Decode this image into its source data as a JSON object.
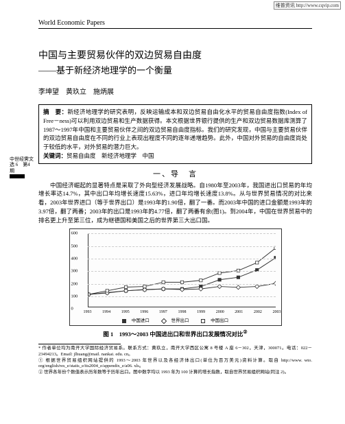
{
  "top_url": "维普资讯 http://www.cqvip.com",
  "journal": "World Economic Papers",
  "title": "中国与主要贸易伙伴的双边贸易自由度",
  "subtitle": "——基于新经济地理学的一个衡量",
  "authors": "李坤望　黄玖立　施炳展",
  "abstract_label": "摘　要：",
  "abstract": "新经济地理学的研究表明，反映运输成本和双边贸易自由化水平的贸易自由度指数(Index of Free－ness)可以利用双边贸易和生产数据获得。本文根据世界银行提供的生产和双边贸易数据库测算了1987～1997年中国和主要贸易伙伴之间的双边贸易自由度指标。我们的研究发现，中国与主要贸易伙伴的双边贸易自由度在不同的行业上表现出程度不同的逐年递增趋势。此外，中国对外贸易的自由度尚处于较低的水平，对外贸易的潜力巨大。",
  "keywords_label": "关键词：",
  "keywords": "贸易自由度　新经济地理学　中国",
  "side_note": "中世经霁文选\n6　第4期",
  "section1": "一、导　言",
  "para1": "中国经济崛起的显著特点是采取了外向型经济发展战略。自1980年至2003年，我国进出口贸易的年均增长率达14.7%，其中出口年均增长速度15.63%，进口年均增长速度13.8%。从与世界贸易情况的对比来看，2003年世界进口（等于世界出口）是1993年的1.90倍，翻了一番。而2003年中国的进口金额是1993年的3.97倍，翻了两番；2003年的出口是1993年的4.77倍，翻了两番有余(图1)。到2004年，中国在世界贸易中的排名更上升至第三位，成为继德国和美国之后的世界第三大出口国。",
  "fig_caption": "图 1　1993～2003 中国进出口和世界出口发展情况对比",
  "chart": {
    "type": "line",
    "ylim": [
      0,
      600
    ],
    "ytick_step": 100,
    "x_labels": [
      "1993",
      "1994",
      "1995",
      "1996",
      "1997",
      "1998",
      "1999",
      "2000",
      "2001",
      "2002",
      "2003"
    ],
    "series": [
      {
        "name": "中国进口",
        "marker": "square-filled",
        "values": [
          100,
          115,
          130,
          140,
          145,
          145,
          165,
          220,
          240,
          300,
          400
        ]
      },
      {
        "name": "世界出口",
        "marker": "diamond",
        "values": [
          100,
          112,
          130,
          138,
          145,
          140,
          145,
          165,
          158,
          165,
          190
        ]
      },
      {
        "name": "中国出口",
        "marker": "square-open",
        "values": [
          100,
          130,
          160,
          165,
          200,
          200,
          215,
          275,
          295,
          360,
          480
        ]
      }
    ],
    "legend_labels": [
      "中国进口",
      "世界出口",
      "中国出口"
    ],
    "grid_color": "#cccccc",
    "line_color": "#333333",
    "background": "#ffffff"
  },
  "footnote1": "* 作者单位均为南开大学国际经济贸易系。联系方式：黄玖立，南开大学西区公寓 8 号楼 A 座 6－302，天津，300071。电话：022－23494213。Email: jlhuang@mail. nankai. edu. cn。",
  "footnote2": "① 根据世界贸易组织网站提供的 1993～2003 年世界以及各经济体出口(单位为百万美元)资料计算。取自 http://www. wto. org/english/res_e/statis_e/its2004_e/appendix_e/a06. xls。",
  "footnote3": "② 世界各年份个数值表示历年数等于历年出口。图中数字均以 1993 年为 100 计算的增长指数，取自世界贸易组织网站(同注 2)。"
}
